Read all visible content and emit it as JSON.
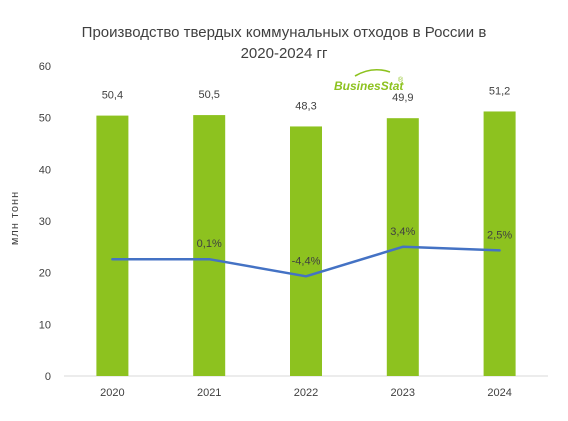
{
  "title": [
    "Производство твердых коммунальных отходов в России в",
    "2020-2024 гг"
  ],
  "logo": {
    "text_a": "Busines",
    "text_b": "Stat",
    "mark": "®",
    "color": "#8dc21f"
  },
  "colors": {
    "bar": "#8dc21f",
    "line": "#4472c4",
    "axis": "#d9d9d9",
    "text": "#404040"
  },
  "chart_data": {
    "type": "bar",
    "title": "Производство твердых коммунальных отходов в России в 2020-2024 гг",
    "categories": [
      "2020",
      "2021",
      "2022",
      "2023",
      "2024"
    ],
    "ylabel": "млн тонн",
    "xlabel": "",
    "ylim": [
      0,
      60
    ],
    "yticks": [
      "0",
      "10",
      "20",
      "30",
      "40",
      "50",
      "60"
    ],
    "grid": false,
    "series": [
      {
        "values": [
          50.4,
          50.5,
          48.3,
          49.9,
          51.2
        ],
        "labels": [
          "50,4",
          "50,5",
          "48,3",
          "49,9",
          "51,2"
        ]
      }
    ],
    "growth_line": {
      "values": [
        null,
        0.1,
        -4.4,
        3.4,
        2.5
      ],
      "labels": [
        "",
        "0,1%",
        "-4,4%",
        "3,4%",
        "2,5%"
      ],
      "plot_levels": [
        22.6,
        22.6,
        19.3,
        25.0,
        24.3
      ]
    }
  }
}
